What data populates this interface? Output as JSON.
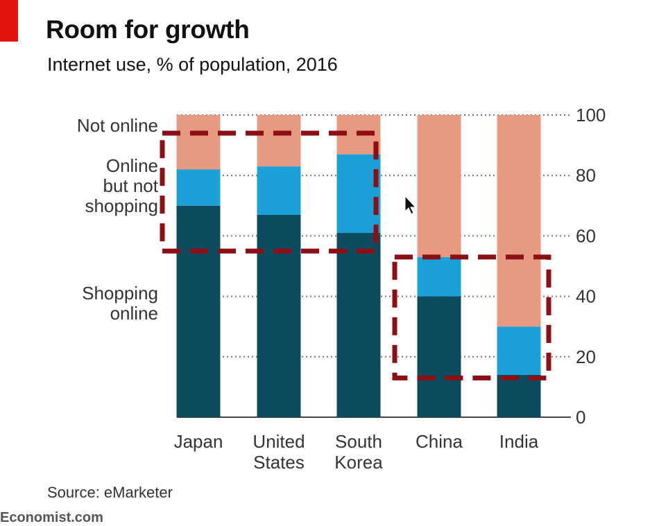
{
  "header": {
    "title": "Room for growth",
    "subtitle": "Internet use, % of population, 2016"
  },
  "footer": {
    "source": "Source: eMarketer",
    "brand": "Economist.com"
  },
  "colors": {
    "shopping": "#0c4a5e",
    "online_not_shopping": "#1ba1d7",
    "not_online": "#e89a80",
    "highlight_box": "#8b0f14",
    "brand_red": "#e3120b"
  },
  "chart_data": {
    "type": "bar",
    "stacked": true,
    "title": "Room for growth",
    "subtitle": "Internet use, % of population, 2016",
    "categories": [
      [
        "Japan"
      ],
      [
        "United",
        "States"
      ],
      [
        "South",
        "Korea"
      ],
      [
        "China"
      ],
      [
        "India"
      ]
    ],
    "series": [
      {
        "name": "Shopping online",
        "label_lines": [
          "Shopping",
          "online"
        ],
        "values": [
          70,
          67,
          61,
          40,
          14
        ]
      },
      {
        "name": "Online but not shopping",
        "label_lines": [
          "Online",
          "but not",
          "shopping"
        ],
        "values": [
          12,
          16,
          26,
          13,
          16
        ]
      },
      {
        "name": "Not online",
        "label_lines": [
          "Not online"
        ],
        "values": [
          18,
          17,
          13,
          47,
          70
        ]
      }
    ],
    "ylim": [
      0,
      100
    ],
    "yticks": [
      0,
      20,
      40,
      60,
      80,
      100
    ],
    "axis_side": "right",
    "grid": "dotted",
    "annotations": [
      {
        "type": "dashed-box",
        "around": [
          "Japan",
          "United States",
          "South Korea"
        ],
        "y_range": [
          55,
          94
        ]
      },
      {
        "type": "dashed-box",
        "around": [
          "China",
          "India"
        ],
        "y_range": [
          13,
          53
        ]
      }
    ]
  }
}
